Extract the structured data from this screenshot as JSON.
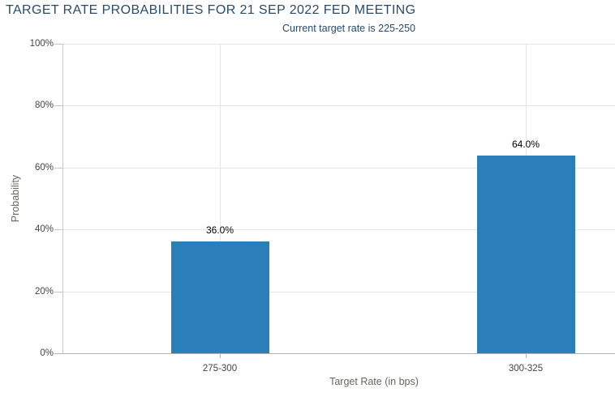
{
  "chart": {
    "title": "TARGET RATE PROBABILITIES FOR 21 SEP 2022 FED MEETING",
    "subtitle": "Current target rate is 225-250"
  },
  "chart_data": {
    "type": "bar",
    "title": "TARGET RATE PROBABILITIES FOR 21 SEP 2022 FED MEETING",
    "subtitle": "Current target rate is 225-250",
    "categories": [
      "275-300",
      "300-325"
    ],
    "values": [
      36.0,
      64.0
    ],
    "value_labels": [
      "36.0%",
      "64.0%"
    ],
    "xlabel": "Target Rate (in bps)",
    "ylabel": "Probability",
    "yticks": [
      0,
      20,
      40,
      60,
      80,
      100
    ],
    "ytick_labels": [
      "0%",
      "20%",
      "40%",
      "60%",
      "80%",
      "100%"
    ],
    "ylim": [
      0,
      100
    ],
    "grid": true,
    "legend": "none"
  },
  "colors": {
    "title": "#274b6d",
    "subtitle": "#274b6d",
    "bar": "#2a7fb8",
    "data_label": "#000000",
    "axis_title": "#66665f",
    "tick_label": "#444440",
    "gridline": "#e6e6e6",
    "y_axis_line": "#c6c6c6",
    "x_axis_line": "#b3b3b3"
  }
}
